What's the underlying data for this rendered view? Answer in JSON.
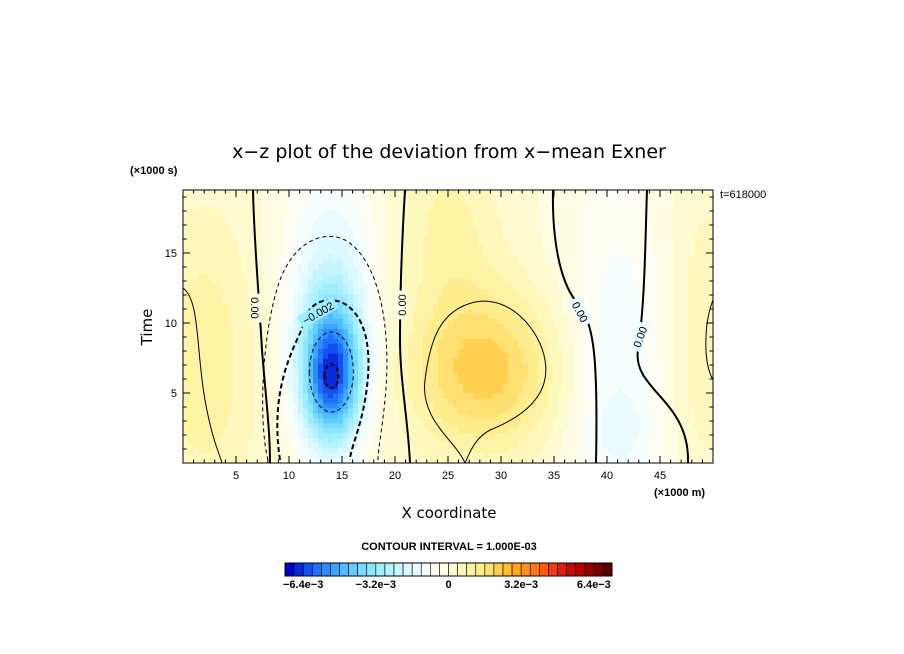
{
  "chart_data": {
    "type": "heatmap",
    "title": "x−z plot of the deviation from x−mean Exner",
    "xlabel": "X coordinate",
    "ylabel": "Time",
    "x_unit": "(×1000 m)",
    "y_unit": "(×1000 s)",
    "time_label": "t=618000",
    "xlim": [
      0,
      50
    ],
    "ylim": [
      0,
      19.5
    ],
    "xticks": [
      "5",
      "10",
      "15",
      "20",
      "25",
      "30",
      "35",
      "40",
      "45"
    ],
    "yticks": [
      "5",
      "10",
      "15"
    ],
    "contour_interval_text": "CONTOUR INTERVAL = 1.000E-03",
    "colorbar": {
      "min": -0.0072,
      "max": 0.0072,
      "step": 0.0004,
      "tick_labels": [
        "−6.4e−3",
        "−3.2e−3",
        "0",
        "3.2e−3",
        "6.4e−3"
      ],
      "colors": [
        "#0000c8",
        "#0a28dc",
        "#1450f0",
        "#1e6eff",
        "#2d8cff",
        "#3ca5ff",
        "#50bbff",
        "#64ccff",
        "#78dcff",
        "#8ce6ff",
        "#a0edff",
        "#b4f2ff",
        "#c8f6ff",
        "#dcf9ff",
        "#eafcff",
        "#f6fefe",
        "#fefef4",
        "#fffde4",
        "#fffbd0",
        "#fff8bc",
        "#fff3a5",
        "#ffec8c",
        "#ffe070",
        "#ffd050",
        "#ffbe32",
        "#ffa81e",
        "#ff9014",
        "#ff7814",
        "#ff5a14",
        "#f03c14",
        "#dc1e14",
        "#c80a0a",
        "#b40000",
        "#960000",
        "#780000",
        "#5a0000"
      ]
    },
    "features": [
      {
        "name": "low-centre",
        "x": 14,
        "y": 6.2,
        "value": -0.0061
      },
      {
        "name": "high-centre",
        "x": 28.5,
        "y": 6.5,
        "value": 0.0022
      },
      {
        "name": "weak-low-east",
        "x": 41,
        "y": 2,
        "value": -0.0012
      }
    ],
    "contour_labels": [
      "0.00",
      "−0.002",
      "0.00",
      "0.00",
      "0.00"
    ]
  }
}
